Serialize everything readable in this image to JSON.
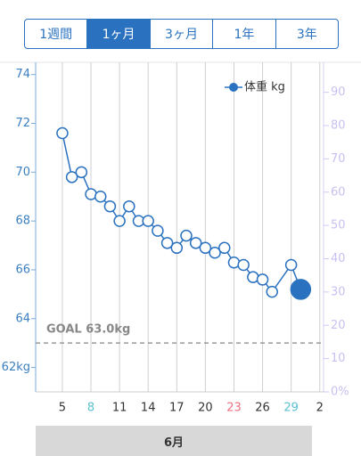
{
  "tabs": [
    "1週間",
    "1ヶ月",
    "3ヶ月",
    "1年",
    "3年"
  ],
  "selected_tab": 1,
  "month_label": "6月",
  "chart_data": {
    "type": "line",
    "x": [
      5,
      6,
      7,
      8,
      9,
      10,
      11,
      12,
      13,
      14,
      15,
      16,
      17,
      18,
      19,
      20,
      21,
      22,
      23,
      24,
      25,
      26,
      27,
      29,
      30
    ],
    "series": [
      {
        "name": "体重 kg",
        "color": "#2a72c0",
        "values": [
          71.6,
          69.8,
          70.0,
          69.1,
          69.0,
          68.6,
          68.0,
          68.6,
          68.0,
          68.0,
          67.6,
          67.1,
          66.9,
          67.4,
          67.1,
          66.9,
          66.7,
          66.9,
          66.3,
          66.2,
          65.7,
          65.6,
          65.1,
          66.2,
          65.2
        ]
      }
    ],
    "highlight_last": true,
    "xlim": [
      2.2,
      32.4
    ],
    "xticks": [
      5,
      8,
      11,
      14,
      17,
      20,
      23,
      26,
      29,
      {
        "value": 32,
        "label": "2"
      }
    ],
    "xtick_colors": [
      "#333333",
      "#5bc0d0",
      "#333333",
      "#333333",
      "#333333",
      "#333333",
      "#f07080",
      "#333333",
      "#5bc0d0",
      "#333333"
    ],
    "ylim": [
      61,
      74.5
    ],
    "yticks": [
      {
        "value": 62,
        "label": "62kg"
      },
      64,
      66,
      68,
      70,
      72,
      74
    ],
    "y2lim": [
      0,
      99
    ],
    "y2ticks": [
      {
        "value": 0,
        "label": "0%"
      },
      10,
      20,
      30,
      40,
      50,
      60,
      70,
      80,
      90
    ],
    "goal": {
      "value": 63,
      "label": "GOAL 63.0kg"
    },
    "grid": true
  }
}
